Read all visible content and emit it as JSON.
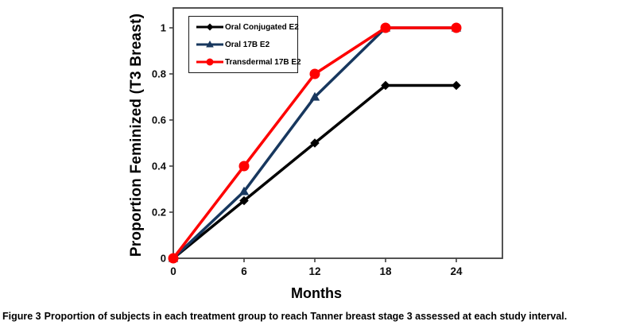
{
  "figure": {
    "caption_label": "Figure 3",
    "caption_text": "Proportion of subjects in each treatment group to reach Tanner breast stage 3 assessed at each study interval."
  },
  "chart_data": {
    "type": "line",
    "title": "",
    "xlabel": "Months",
    "ylabel": "Proportion Feminized (T3 Breast)",
    "x": [
      0,
      6,
      12,
      18,
      24
    ],
    "xticks": [
      0,
      6,
      12,
      18,
      24
    ],
    "yticks": [
      0,
      0.2,
      0.4,
      0.6,
      0.8,
      1
    ],
    "xlim": [
      0,
      28
    ],
    "ylim": [
      0,
      1.09
    ],
    "grid": false,
    "legend_position": "top-left",
    "frame_color": "#404040",
    "series": [
      {
        "name": "Oral Conjugated E2",
        "color": "#000000",
        "marker": "diamond",
        "values": [
          0,
          0.25,
          0.5,
          0.75,
          0.75
        ]
      },
      {
        "name": "Oral 17B E2",
        "color": "#17375E",
        "marker": "triangle",
        "values": [
          0,
          0.29,
          0.7,
          1,
          1
        ]
      },
      {
        "name": "Transdermal 17B E2",
        "color": "#FE0000",
        "marker": "circle",
        "values": [
          0,
          0.4,
          0.8,
          1,
          1
        ]
      }
    ]
  }
}
